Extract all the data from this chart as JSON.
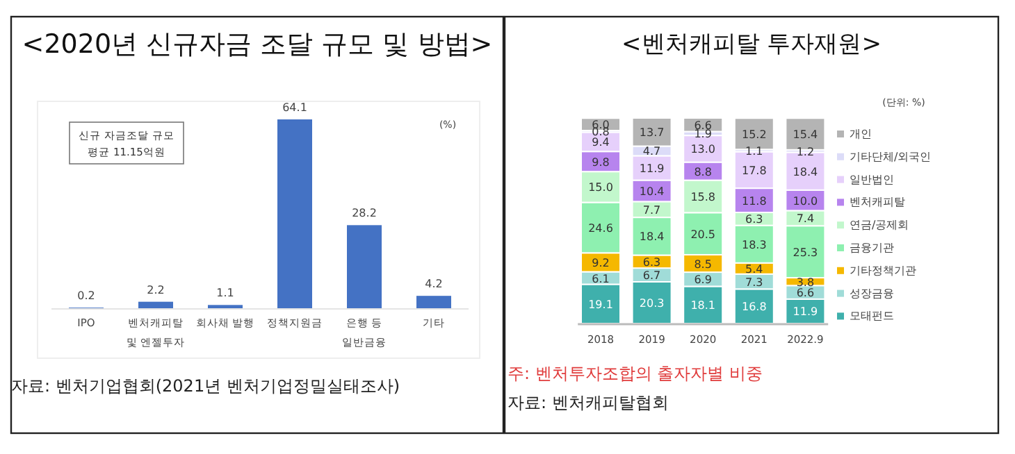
{
  "chart_data": [
    {
      "type": "bar",
      "title": "<2020년 신규자금 조달 규모 및 방법>",
      "categories": [
        "IPO",
        "벤처캐피탈 및 엔젤투자",
        "회사채 발행",
        "정책지원금",
        "은행 등 일반금융",
        "기타"
      ],
      "values": [
        0.2,
        2.2,
        1.1,
        64.1,
        28.2,
        4.2
      ],
      "color": "#4472c4",
      "data_labels": true,
      "annotations": [
        "신규 자금조달 규모 평균 11.15억원",
        "(%)",
        "자료: 벤처기업협회(2021년 벤처기업정밀실태조사)"
      ]
    },
    {
      "type": "bar",
      "title": "<벤처캐피탈 투자재원>",
      "stacked": true,
      "legend": "right",
      "categories": [
        "2018",
        "2019",
        "2020",
        "2021",
        "2022.9"
      ],
      "series": [
        {
          "name": "모태펀드",
          "color": "#3fb0ac",
          "values": [
            19.1,
            20.3,
            18.1,
            16.8,
            11.9
          ],
          "value_labels": [
            "19.1",
            "20.3",
            "18.1",
            "16.8",
            "11.9"
          ]
        },
        {
          "name": "성장금융",
          "color": "#a0dcd8",
          "values": [
            6.1,
            6.7,
            6.9,
            7.3,
            6.6
          ],
          "value_labels": [
            "6.1",
            "6.7",
            "6.9",
            "7.3",
            "6.6"
          ]
        },
        {
          "name": "기타정책기관",
          "color": "#f5b800",
          "values": [
            9.2,
            6.3,
            8.5,
            5.4,
            3.8
          ],
          "value_labels": [
            "9.2",
            "6.3",
            "8.5",
            "5.4",
            "3.8"
          ]
        },
        {
          "name": "금융기관",
          "color": "#8ef0b0",
          "values": [
            24.6,
            18.4,
            20.5,
            18.3,
            25.3
          ],
          "value_labels": [
            "24.6",
            "18.4",
            "20.5",
            "18.3",
            "25.3"
          ]
        },
        {
          "name": "연금/공제회",
          "color": "#c2f7cc",
          "values": [
            15.0,
            7.7,
            15.8,
            6.3,
            7.4
          ],
          "value_labels": [
            "15.0",
            "7.7",
            "15.8",
            "6.3",
            "7.4"
          ]
        },
        {
          "name": "벤처캐피탈",
          "color": "#b784ee",
          "values": [
            9.8,
            10.4,
            8.8,
            11.8,
            10.0
          ],
          "value_labels": [
            "9.8",
            "10.4",
            "8.8",
            "11.8",
            "10.0"
          ]
        },
        {
          "name": "일반법인",
          "color": "#e6d0fb",
          "values": [
            9.4,
            11.9,
            13.0,
            17.8,
            18.4
          ],
          "value_labels": [
            "9.4",
            "11.9",
            "13.0",
            "17.8",
            "18.4"
          ]
        },
        {
          "name": "기타단체/외국인",
          "color": "#dcdcf8",
          "values": [
            0.8,
            4.7,
            1.9,
            1.1,
            1.2
          ],
          "value_labels": [
            "0.8",
            "4.7",
            "1.9",
            "1.1",
            "1.2"
          ]
        },
        {
          "name": "개인",
          "color": "#b4b4b4",
          "values": [
            6.0,
            13.7,
            6.6,
            15.2,
            15.4
          ],
          "value_labels": [
            "6.0",
            "13.7",
            "6.6",
            "15.2",
            "15.4"
          ]
        }
      ],
      "annotations": [
        "(단위: %)",
        "주: 벤처투자조합의 출자자별 비중",
        "자료: 벤처캐피탈협회"
      ]
    }
  ]
}
